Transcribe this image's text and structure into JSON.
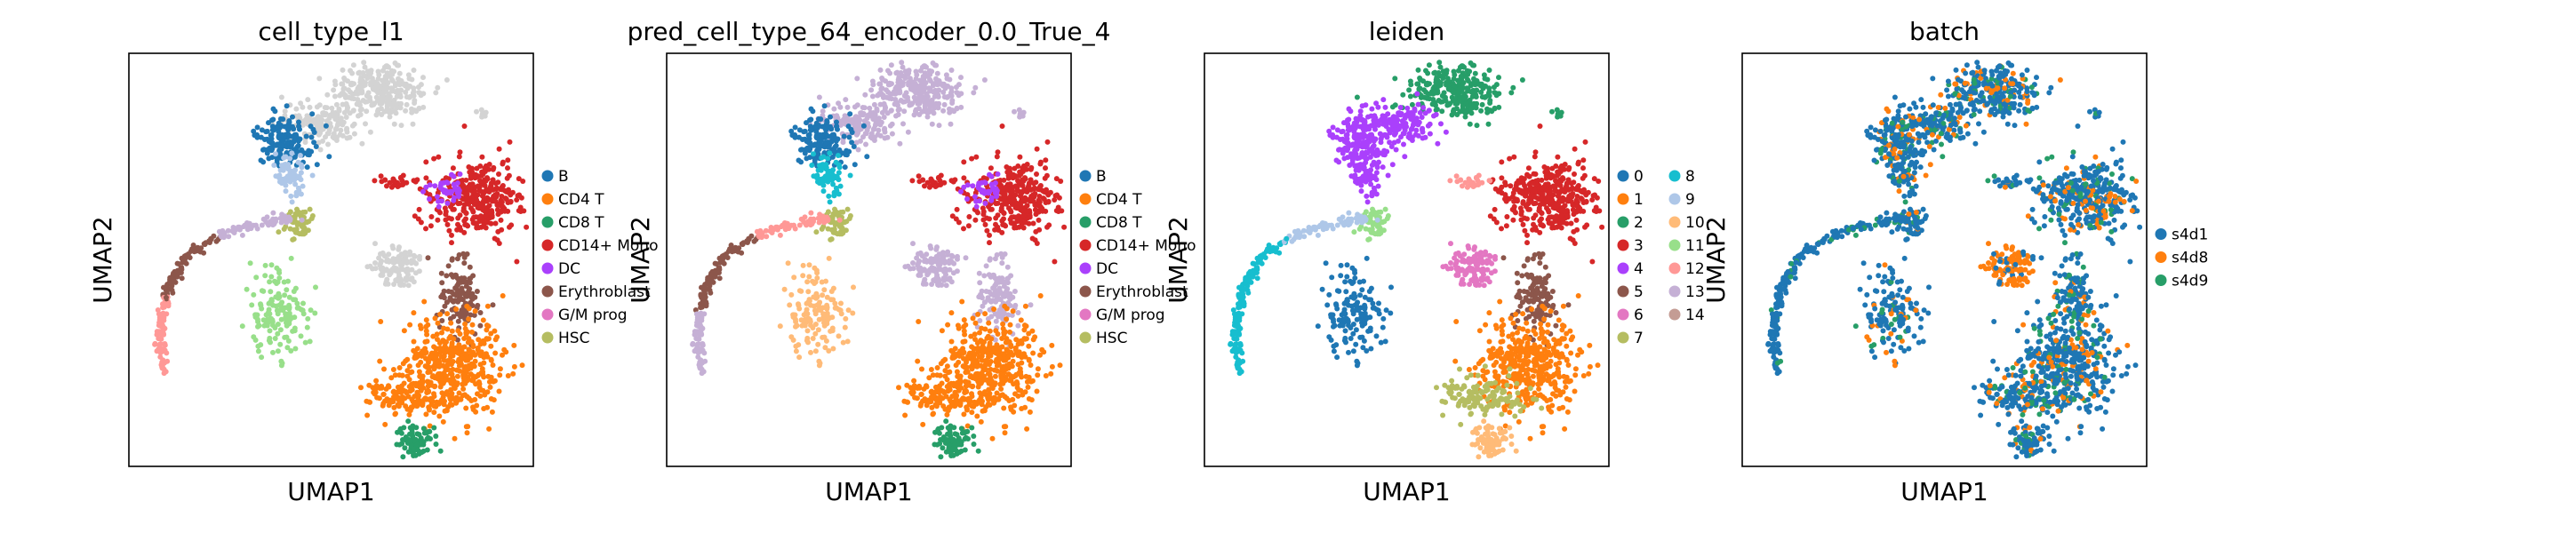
{
  "chart_data": [
    {
      "type": "scatter",
      "title": "cell_type_l1",
      "xlabel": "UMAP1",
      "ylabel": "UMAP2",
      "legend": [
        {
          "label": "B",
          "color": "#1f77b4"
        },
        {
          "label": "CD4 T",
          "color": "#ff7f0e"
        },
        {
          "label": "CD8 T",
          "color": "#279e68"
        },
        {
          "label": "CD14+ Mono",
          "color": "#d62728"
        },
        {
          "label": "DC",
          "color": "#aa40fc"
        },
        {
          "label": "Erythroblast",
          "color": "#8c564b"
        },
        {
          "label": "G/M prog",
          "color": "#e377c2"
        },
        {
          "label": "HSC",
          "color": "#b5bd61"
        }
      ],
      "legend_columns": 1,
      "unlabeled_color": "#d3d3d3"
    },
    {
      "type": "scatter",
      "title": "pred_cell_type_64_encoder_0.0_True_4",
      "xlabel": "UMAP1",
      "ylabel": "UMAP2",
      "legend": [
        {
          "label": "B",
          "color": "#1f77b4"
        },
        {
          "label": "CD4 T",
          "color": "#ff7f0e"
        },
        {
          "label": "CD8 T",
          "color": "#279e68"
        },
        {
          "label": "CD14+ Mono",
          "color": "#d62728"
        },
        {
          "label": "DC",
          "color": "#aa40fc"
        },
        {
          "label": "Erythroblast",
          "color": "#8c564b"
        },
        {
          "label": "G/M prog",
          "color": "#e377c2"
        },
        {
          "label": "HSC",
          "color": "#b5bd61"
        }
      ],
      "legend_columns": 1,
      "extra_colors": [
        "#c5b0d5",
        "#17becf",
        "#ff9896",
        "#ffbb78"
      ]
    },
    {
      "type": "scatter",
      "title": "leiden",
      "xlabel": "UMAP1",
      "ylabel": "UMAP2",
      "legend": [
        {
          "label": "0",
          "color": "#1f77b4"
        },
        {
          "label": "1",
          "color": "#ff7f0e"
        },
        {
          "label": "2",
          "color": "#279e68"
        },
        {
          "label": "3",
          "color": "#d62728"
        },
        {
          "label": "4",
          "color": "#aa40fc"
        },
        {
          "label": "5",
          "color": "#8c564b"
        },
        {
          "label": "6",
          "color": "#e377c2"
        },
        {
          "label": "7",
          "color": "#b5bd61"
        },
        {
          "label": "8",
          "color": "#17becf"
        },
        {
          "label": "9",
          "color": "#aec7e8"
        },
        {
          "label": "10",
          "color": "#ffbb78"
        },
        {
          "label": "11",
          "color": "#98df8a"
        },
        {
          "label": "12",
          "color": "#ff9896"
        },
        {
          "label": "13",
          "color": "#c5b0d5"
        },
        {
          "label": "14",
          "color": "#c49c94"
        }
      ],
      "legend_columns": 2
    },
    {
      "type": "scatter",
      "title": "batch",
      "xlabel": "UMAP1",
      "ylabel": "UMAP2",
      "legend": [
        {
          "label": "s4d1",
          "color": "#1f77b4"
        },
        {
          "label": "s4d8",
          "color": "#ff7f0e"
        },
        {
          "label": "s4d9",
          "color": "#279e68"
        }
      ],
      "legend_columns": 1
    }
  ]
}
